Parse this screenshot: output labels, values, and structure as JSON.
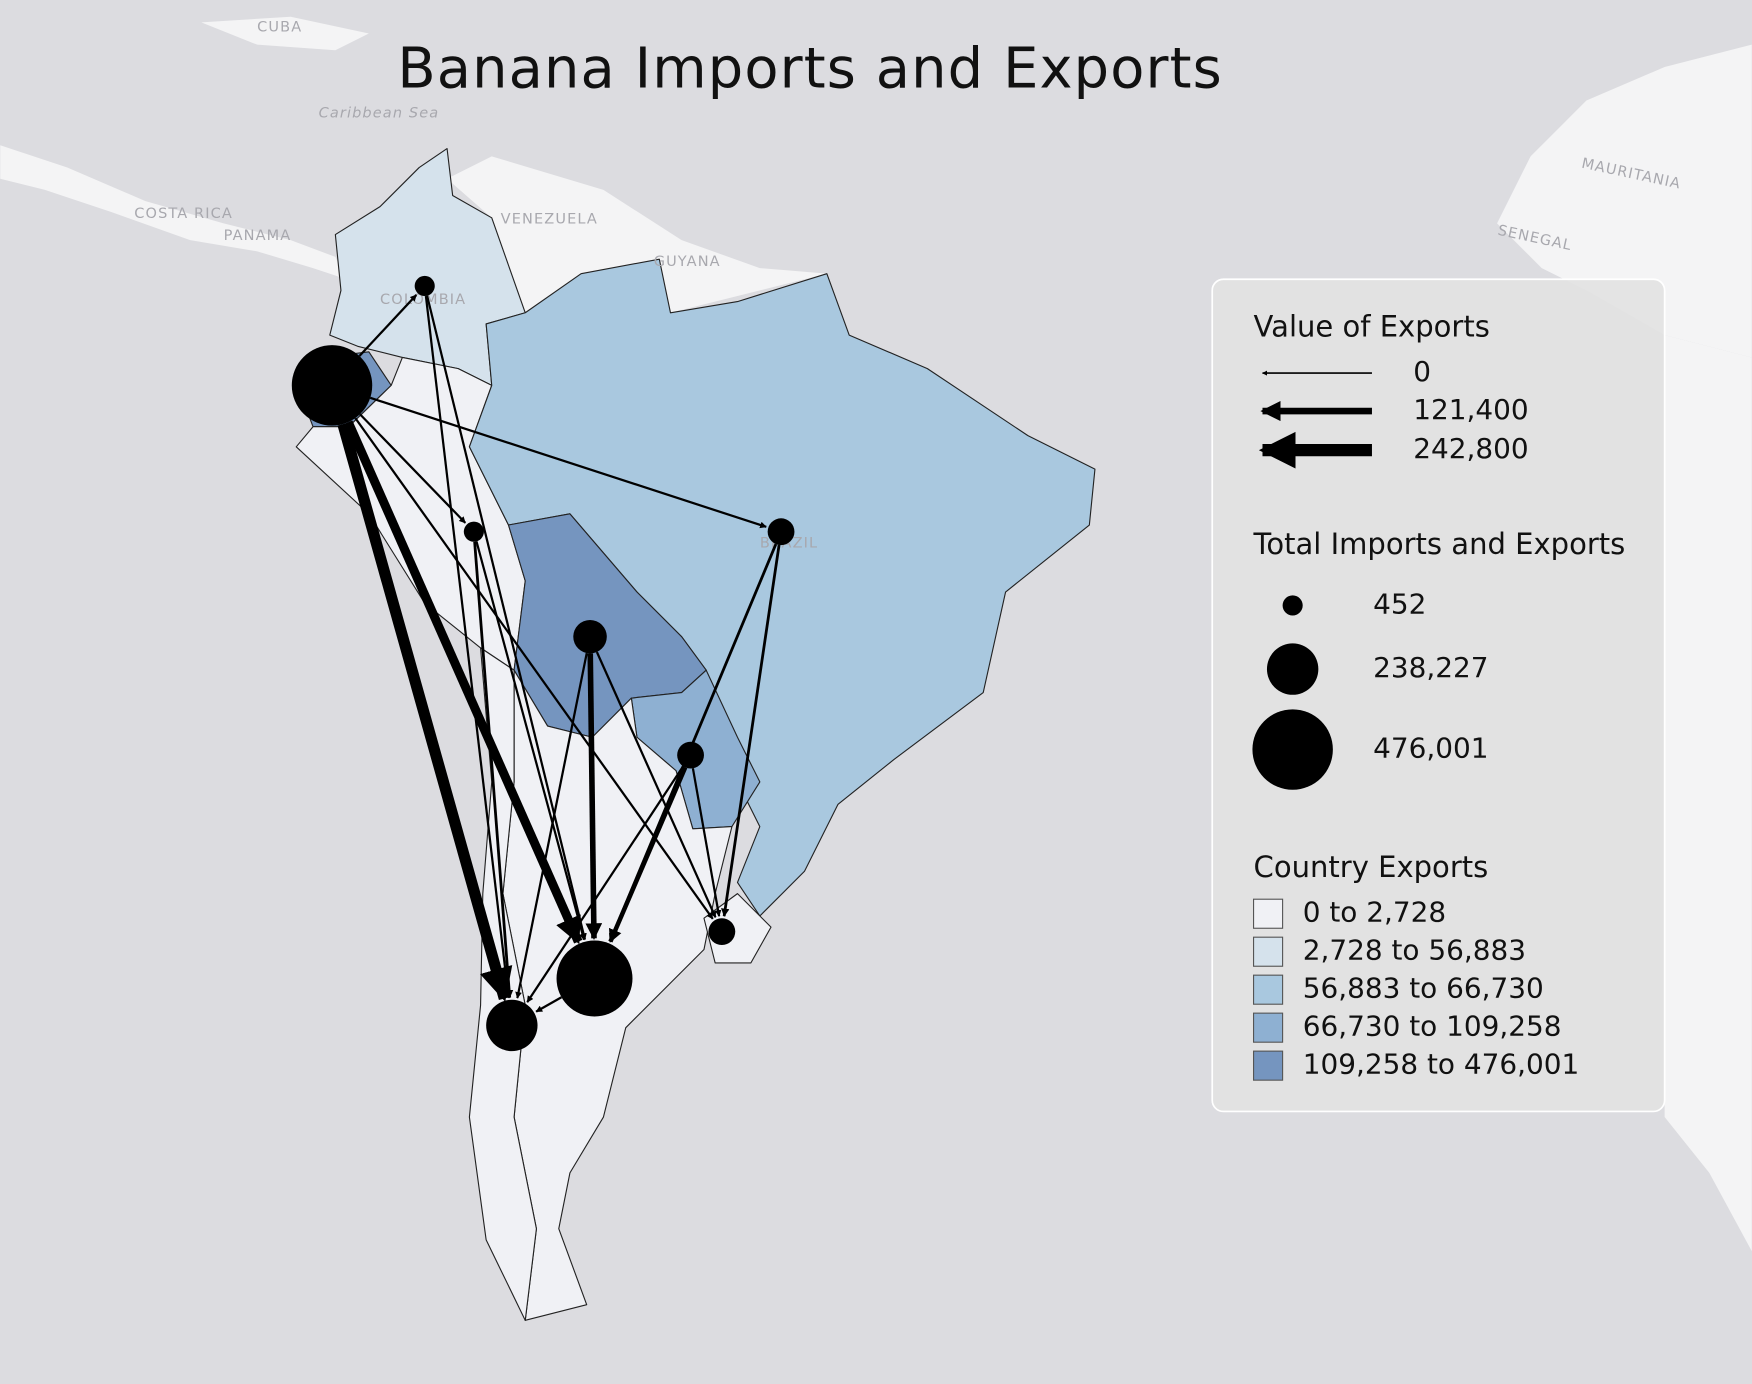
{
  "title": "Banana Imports and Exports",
  "map_labels": {
    "cuba": "CUBA",
    "caribbean": "Caribbean Sea",
    "costa_rica": "COSTA RICA",
    "panama": "PANAMA",
    "venezuela": "VENEZUELA",
    "guyana": "GUYANA",
    "colombia": "COLOMBIA",
    "brazil": "BRAZIL",
    "mauritania": "MAURITANIA",
    "senegal": "SENEGAL"
  },
  "legend": {
    "flows": {
      "title": "Value of Exports",
      "items": [
        "0",
        "121,400",
        "242,800"
      ]
    },
    "circles": {
      "title": "Total Imports and Exports",
      "items": [
        "452",
        "238,227",
        "476,001"
      ]
    },
    "classes": {
      "title": "Country Exports",
      "items": [
        {
          "label": "0 to 2,728",
          "color": "#f0f1f5"
        },
        {
          "label": "2,728 to 56,883",
          "color": "#d5e2ec"
        },
        {
          "label": "56,883 to 66,730",
          "color": "#a9c8df"
        },
        {
          "label": "66,730 to 109,258",
          "color": "#8eb0d2"
        },
        {
          "label": "109,258 to 476,001",
          "color": "#7595bf"
        }
      ]
    }
  }
}
